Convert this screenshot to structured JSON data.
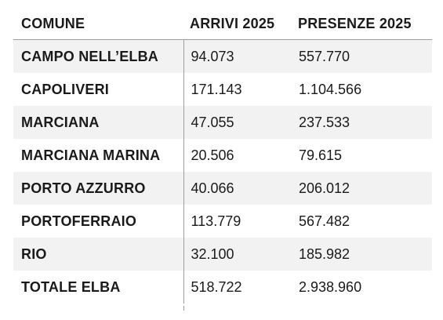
{
  "table": {
    "headers": [
      "COMUNE",
      "ARRIVI 2025",
      "PRESENZE 2025"
    ],
    "rows": [
      {
        "comune": "CAMPO NELL’ELBA",
        "arrivi": "94.073",
        "presenze": "557.770"
      },
      {
        "comune": "CAPOLIVERI",
        "arrivi": "171.143",
        "presenze": "1.104.566"
      },
      {
        "comune": "MARCIANA",
        "arrivi": "47.055",
        "presenze": "237.533"
      },
      {
        "comune": "MARCIANA MARINA",
        "arrivi": "20.506",
        "presenze": "79.615"
      },
      {
        "comune": "PORTO AZZURRO",
        "arrivi": "40.066",
        "presenze": "206.012"
      },
      {
        "comune": "PORTOFERRAIO",
        "arrivi": "113.779",
        "presenze": "567.482"
      },
      {
        "comune": "RIO",
        "arrivi": "32.100",
        "presenze": "185.982"
      },
      {
        "comune": "TOTALE ELBA",
        "arrivi": "518.722",
        "presenze": "2.938.960"
      }
    ]
  },
  "colors": {
    "shade": "#f2f2f2",
    "rule": "#9e9e9e",
    "text": "#1a1a1a"
  }
}
